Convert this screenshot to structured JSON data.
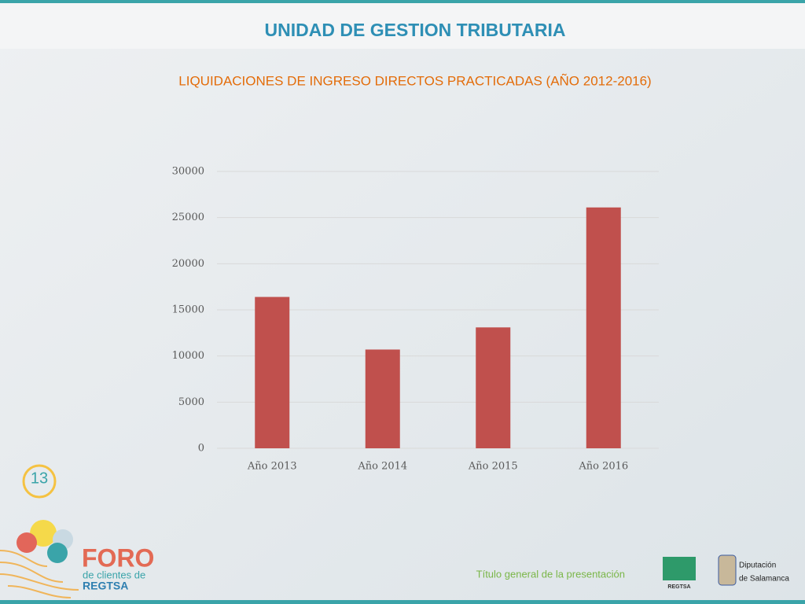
{
  "slide": {
    "title": "UNIDAD DE GESTION TRIBUTARIA",
    "footer": "Título general de la presentación",
    "logos": {
      "foro_number": "13",
      "foro_title": "FORO",
      "foro_line1": "de clientes de",
      "foro_line2": "REGTSA",
      "regtsa": "REGTSA",
      "diputacion_line1": "Diputación",
      "diputacion_line2": "de Salamanca"
    }
  },
  "chart_data": {
    "type": "bar",
    "title": "LIQUIDACIONES DE INGRESO DIRECTOS PRACTICADAS (AÑO 2012-2016)",
    "categories": [
      "Año 2013",
      "Año 2014",
      "Año 2015",
      "Año 2016"
    ],
    "values": [
      16400,
      10700,
      13100,
      26100
    ],
    "color": "#c0504d",
    "ylim": [
      0,
      30000
    ],
    "yticks": [
      0,
      5000,
      10000,
      15000,
      20000,
      25000,
      30000
    ],
    "grid": true
  }
}
